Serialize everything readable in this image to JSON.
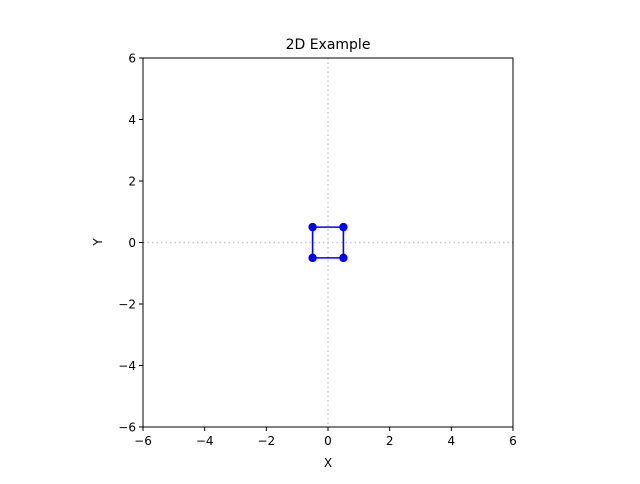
{
  "chart_data": {
    "type": "line",
    "title": "2D Example",
    "xlabel": "X",
    "ylabel": "Y",
    "xlim": [
      -6,
      6
    ],
    "ylim": [
      -6,
      6
    ],
    "xticks": [
      -6,
      -4,
      -2,
      0,
      2,
      4,
      6
    ],
    "yticks": [
      -6,
      -4,
      -2,
      0,
      2,
      4,
      6
    ],
    "tick_labels_x": [
      "−6",
      "−4",
      "−2",
      "0",
      "2",
      "4",
      "6"
    ],
    "tick_labels_y": [
      "−6",
      "−4",
      "−2",
      "0",
      "2",
      "4",
      "6"
    ],
    "grid": false,
    "reference_lines": {
      "x": 0,
      "y": 0,
      "style": "dotted",
      "color": "#c8c8c8"
    },
    "series": [
      {
        "x": [
          -0.5,
          0.5,
          0.5,
          -0.5,
          -0.5
        ],
        "y": [
          0.5,
          0.5,
          -0.5,
          -0.5,
          0.5
        ],
        "color": "#0000ff",
        "marker": "circle"
      }
    ]
  }
}
